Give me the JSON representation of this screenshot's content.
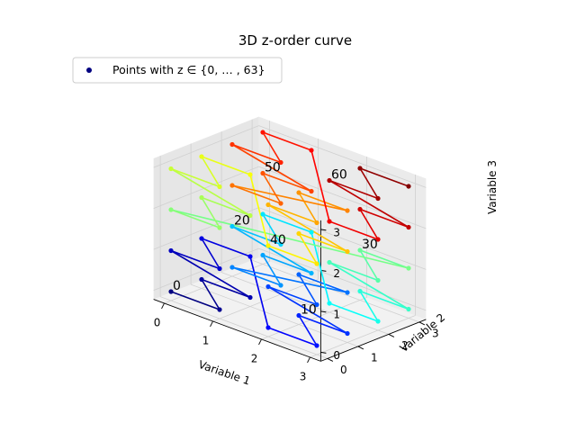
{
  "chart_data": {
    "type": "line",
    "projection": "3d",
    "title": "3D z-order curve",
    "xlabel": "Variable 1",
    "ylabel": "Variable 2",
    "zlabel": "Variable 3",
    "xlim": [
      0,
      3
    ],
    "ylim": [
      0,
      3
    ],
    "zlim": [
      0,
      3
    ],
    "xticks": [
      "0",
      "1",
      "2",
      "3"
    ],
    "yticks": [
      "0",
      "1",
      "2",
      "3"
    ],
    "zticks": [
      "0",
      "1",
      "2",
      "3"
    ],
    "grid": true,
    "colormap": "jet",
    "legend": {
      "label": "Points with z ∈ {0, … , 63}",
      "placement": "upper-left",
      "marker_color": "#000080"
    },
    "annotations": [
      {
        "text": "0",
        "index": 0
      },
      {
        "text": "10",
        "index": 10
      },
      {
        "text": "20",
        "index": 20
      },
      {
        "text": "30",
        "index": 30
      },
      {
        "text": "40",
        "index": 40
      },
      {
        "text": "50",
        "index": 50
      },
      {
        "text": "60",
        "index": 60
      }
    ],
    "points": [
      [
        0,
        0,
        0
      ],
      [
        1,
        0,
        0
      ],
      [
        0,
        1,
        0
      ],
      [
        1,
        1,
        0
      ],
      [
        0,
        0,
        1
      ],
      [
        1,
        0,
        1
      ],
      [
        0,
        1,
        1
      ],
      [
        1,
        1,
        1
      ],
      [
        2,
        0,
        0
      ],
      [
        3,
        0,
        0
      ],
      [
        2,
        1,
        0
      ],
      [
        3,
        1,
        0
      ],
      [
        2,
        0,
        1
      ],
      [
        3,
        0,
        1
      ],
      [
        2,
        1,
        1
      ],
      [
        3,
        1,
        1
      ],
      [
        0,
        2,
        0
      ],
      [
        1,
        2,
        0
      ],
      [
        0,
        3,
        0
      ],
      [
        1,
        3,
        0
      ],
      [
        0,
        2,
        1
      ],
      [
        1,
        2,
        1
      ],
      [
        0,
        3,
        1
      ],
      [
        1,
        3,
        1
      ],
      [
        2,
        2,
        0
      ],
      [
        3,
        2,
        0
      ],
      [
        2,
        3,
        0
      ],
      [
        3,
        3,
        0
      ],
      [
        2,
        2,
        1
      ],
      [
        3,
        2,
        1
      ],
      [
        2,
        3,
        1
      ],
      [
        3,
        3,
        1
      ],
      [
        0,
        0,
        2
      ],
      [
        1,
        0,
        2
      ],
      [
        0,
        1,
        2
      ],
      [
        1,
        1,
        2
      ],
      [
        0,
        0,
        3
      ],
      [
        1,
        0,
        3
      ],
      [
        0,
        1,
        3
      ],
      [
        1,
        1,
        3
      ],
      [
        2,
        0,
        2
      ],
      [
        3,
        0,
        2
      ],
      [
        2,
        1,
        2
      ],
      [
        3,
        1,
        2
      ],
      [
        2,
        0,
        3
      ],
      [
        3,
        0,
        3
      ],
      [
        2,
        1,
        3
      ],
      [
        3,
        1,
        3
      ],
      [
        0,
        2,
        2
      ],
      [
        1,
        2,
        2
      ],
      [
        0,
        3,
        2
      ],
      [
        1,
        3,
        2
      ],
      [
        0,
        2,
        3
      ],
      [
        1,
        2,
        3
      ],
      [
        0,
        3,
        3
      ],
      [
        1,
        3,
        3
      ],
      [
        2,
        2,
        2
      ],
      [
        3,
        2,
        2
      ],
      [
        2,
        3,
        2
      ],
      [
        3,
        3,
        2
      ],
      [
        2,
        2,
        3
      ],
      [
        3,
        2,
        3
      ],
      [
        2,
        3,
        3
      ],
      [
        3,
        3,
        3
      ]
    ]
  }
}
